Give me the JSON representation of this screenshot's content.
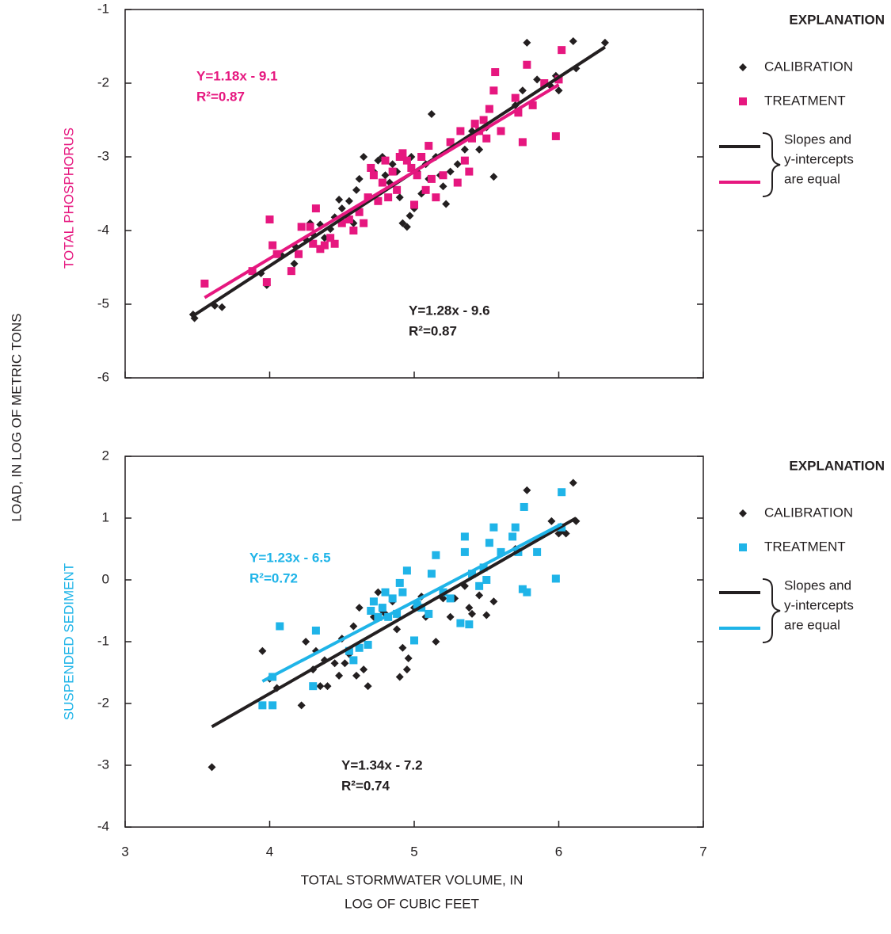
{
  "y_label": "LOAD, IN LOG OF METRIC TONS",
  "x_label": [
    "TOTAL STORMWATER VOLUME, IN",
    "LOG OF CUBIC FEET"
  ],
  "chart_data": [
    {
      "type": "scatter",
      "ylabel": "TOTAL PHOSPHORUS",
      "ylabel_color": "#e6177f",
      "xlim": [
        3,
        7
      ],
      "xticks": [
        3,
        4,
        5,
        6,
        7
      ],
      "show_xtick_labels": false,
      "ylim": [
        -6,
        -1
      ],
      "yticks": [
        -6,
        -5,
        -4,
        -3,
        -2,
        -1
      ],
      "legend_title": "EXPLANATION",
      "legend_note": [
        "Slopes and",
        "y-intercepts",
        "are equal"
      ],
      "series": [
        {
          "name": "CALIBRATION",
          "color": "#231f20",
          "marker": "diamond",
          "fit": {
            "slope": 1.28,
            "intercept": -9.6,
            "x_range": [
              3.47,
              6.32
            ]
          },
          "annotation": [
            "Y=1.28x - 9.6",
            "R²=0.87"
          ],
          "x": [
            3.47,
            3.48,
            3.62,
            3.67,
            3.94,
            3.98,
            4.08,
            4.17,
            4.18,
            4.25,
            4.28,
            4.3,
            4.35,
            4.38,
            4.42,
            4.45,
            4.48,
            4.5,
            4.55,
            4.58,
            4.6,
            4.62,
            4.65,
            4.7,
            4.72,
            4.75,
            4.78,
            4.8,
            4.83,
            4.85,
            4.88,
            4.9,
            4.92,
            4.95,
            4.97,
            4.98,
            5.0,
            5.02,
            5.05,
            5.08,
            5.1,
            5.12,
            5.15,
            5.18,
            5.2,
            5.22,
            5.25,
            5.3,
            5.35,
            5.4,
            5.45,
            5.5,
            5.55,
            5.7,
            5.75,
            5.78,
            5.85,
            5.95,
            5.98,
            6.0,
            6.1,
            6.12,
            6.32
          ],
          "values": [
            -5.14,
            -5.19,
            -5.02,
            -5.04,
            -4.58,
            -4.74,
            -4.33,
            -4.45,
            -4.22,
            -4.12,
            -3.9,
            -4.05,
            -3.92,
            -4.1,
            -3.98,
            -3.82,
            -3.58,
            -3.7,
            -3.6,
            -3.9,
            -3.45,
            -3.3,
            -3.0,
            -3.55,
            -3.2,
            -3.05,
            -3.0,
            -3.25,
            -3.35,
            -3.1,
            -3.2,
            -3.55,
            -3.9,
            -3.95,
            -3.8,
            -3.0,
            -3.7,
            -3.2,
            -3.5,
            -3.1,
            -3.3,
            -2.42,
            -3.0,
            -3.25,
            -3.4,
            -3.64,
            -3.2,
            -3.1,
            -2.9,
            -2.65,
            -2.9,
            -2.6,
            -3.27,
            -2.3,
            -2.1,
            -1.45,
            -1.95,
            -2.05,
            -1.9,
            -2.1,
            -1.43,
            -1.8,
            -1.45
          ]
        },
        {
          "name": "TREATMENT",
          "color": "#e6177f",
          "marker": "square",
          "fit": {
            "slope": 1.18,
            "intercept": -9.1,
            "x_range": [
              3.55,
              6.0
            ]
          },
          "annotation": [
            "Y=1.18x - 9.1",
            "R²=0.87"
          ],
          "x": [
            3.55,
            3.88,
            3.98,
            4.0,
            4.02,
            4.05,
            4.15,
            4.2,
            4.22,
            4.28,
            4.3,
            4.32,
            4.35,
            4.38,
            4.42,
            4.45,
            4.5,
            4.55,
            4.58,
            4.62,
            4.65,
            4.68,
            4.7,
            4.72,
            4.75,
            4.78,
            4.8,
            4.82,
            4.85,
            4.88,
            4.9,
            4.92,
            4.95,
            4.98,
            5.0,
            5.02,
            5.05,
            5.08,
            5.1,
            5.12,
            5.15,
            5.2,
            5.25,
            5.3,
            5.32,
            5.35,
            5.38,
            5.4,
            5.42,
            5.45,
            5.48,
            5.5,
            5.52,
            5.55,
            5.56,
            5.6,
            5.7,
            5.72,
            5.75,
            5.78,
            5.82,
            5.9,
            5.98,
            6.0,
            6.02
          ],
          "values": [
            -4.72,
            -4.55,
            -4.7,
            -3.85,
            -4.2,
            -4.32,
            -4.55,
            -4.32,
            -3.95,
            -3.95,
            -4.18,
            -3.7,
            -4.25,
            -4.2,
            -4.1,
            -4.18,
            -3.9,
            -3.85,
            -4.0,
            -3.75,
            -3.9,
            -3.55,
            -3.15,
            -3.25,
            -3.6,
            -3.35,
            -3.05,
            -3.55,
            -3.2,
            -3.45,
            -3.0,
            -2.95,
            -3.05,
            -3.15,
            -3.65,
            -3.25,
            -3.0,
            -3.45,
            -2.85,
            -3.3,
            -3.55,
            -3.25,
            -2.8,
            -3.35,
            -2.65,
            -3.05,
            -3.2,
            -2.75,
            -2.55,
            -2.65,
            -2.5,
            -2.75,
            -2.35,
            -2.1,
            -1.85,
            -2.65,
            -2.2,
            -2.4,
            -2.8,
            -1.75,
            -2.3,
            -2.0,
            -2.72,
            -1.95,
            -1.55
          ]
        }
      ]
    },
    {
      "type": "scatter",
      "ylabel": "SUSPENDED SEDIMENT",
      "ylabel_color": "#1fb4e8",
      "xlim": [
        3,
        7
      ],
      "xticks": [
        3,
        4,
        5,
        6,
        7
      ],
      "show_xtick_labels": true,
      "ylim": [
        -4,
        2
      ],
      "yticks": [
        -4,
        -3,
        -2,
        -1,
        0,
        1,
        2
      ],
      "legend_title": "EXPLANATION",
      "legend_note": [
        "Slopes and",
        "y-intercepts",
        "are equal"
      ],
      "series": [
        {
          "name": "CALIBRATION",
          "color": "#231f20",
          "marker": "diamond",
          "fit": {
            "slope": 1.34,
            "intercept": -7.2,
            "x_range": [
              3.6,
              6.12
            ]
          },
          "annotation": [
            "Y=1.34x - 7.2",
            "R²=0.74"
          ],
          "x": [
            3.6,
            3.95,
            4.0,
            4.05,
            4.22,
            4.25,
            4.3,
            4.32,
            4.35,
            4.38,
            4.4,
            4.45,
            4.48,
            4.5,
            4.52,
            4.55,
            4.58,
            4.6,
            4.62,
            4.65,
            4.68,
            4.72,
            4.75,
            4.78,
            4.8,
            4.85,
            4.88,
            4.9,
            4.92,
            4.95,
            4.96,
            5.0,
            5.05,
            5.08,
            5.15,
            5.2,
            5.25,
            5.28,
            5.35,
            5.38,
            5.4,
            5.45,
            5.5,
            5.55,
            5.7,
            5.78,
            5.95,
            6.0,
            6.02,
            6.05,
            6.1,
            6.12
          ],
          "values": [
            -3.03,
            -1.15,
            -1.6,
            -1.75,
            -2.03,
            -1.0,
            -1.45,
            -1.15,
            -1.72,
            -1.3,
            -1.72,
            -1.35,
            -1.55,
            -0.95,
            -1.35,
            -1.2,
            -0.75,
            -1.55,
            -0.45,
            -1.45,
            -1.72,
            -0.6,
            -0.2,
            -0.5,
            -0.55,
            -0.35,
            -0.8,
            -1.57,
            -1.1,
            -1.45,
            -1.27,
            -0.45,
            -0.27,
            -0.6,
            -1.0,
            -0.3,
            -0.6,
            -0.3,
            -0.1,
            -0.45,
            -0.55,
            -0.25,
            -0.57,
            -0.35,
            0.5,
            1.45,
            0.95,
            0.75,
            0.8,
            0.75,
            1.57,
            0.95
          ]
        },
        {
          "name": "TREATMENT",
          "color": "#1fb4e8",
          "marker": "square",
          "fit": {
            "slope": 1.23,
            "intercept": -6.5,
            "x_range": [
              3.95,
              6.02
            ]
          },
          "annotation": [
            "Y=1.23x - 6.5",
            "R²=0.72"
          ],
          "x": [
            3.95,
            4.02,
            4.02,
            4.07,
            4.3,
            4.32,
            4.55,
            4.58,
            4.62,
            4.68,
            4.7,
            4.72,
            4.75,
            4.78,
            4.8,
            4.82,
            4.85,
            4.88,
            4.9,
            4.92,
            4.95,
            5.0,
            5.02,
            5.05,
            5.1,
            5.12,
            5.15,
            5.2,
            5.25,
            5.32,
            5.35,
            5.35,
            5.38,
            5.4,
            5.45,
            5.48,
            5.5,
            5.52,
            5.55,
            5.6,
            5.68,
            5.7,
            5.72,
            5.75,
            5.78,
            5.76,
            5.85,
            5.98,
            6.02,
            6.02
          ],
          "values": [
            -2.03,
            -2.03,
            -1.57,
            -0.75,
            -1.72,
            -0.82,
            -1.15,
            -1.3,
            -1.1,
            -1.05,
            -0.5,
            -0.35,
            -0.6,
            -0.45,
            -0.2,
            -0.6,
            -0.3,
            -0.55,
            -0.05,
            -0.2,
            0.15,
            -0.98,
            -0.4,
            -0.45,
            -0.55,
            0.1,
            0.4,
            -0.2,
            -0.3,
            -0.7,
            0.45,
            0.7,
            -0.72,
            0.1,
            -0.1,
            0.2,
            0.0,
            0.6,
            0.85,
            0.45,
            0.7,
            0.85,
            0.45,
            -0.15,
            -0.2,
            1.18,
            0.45,
            0.02,
            1.42,
            0.85
          ]
        }
      ]
    }
  ]
}
